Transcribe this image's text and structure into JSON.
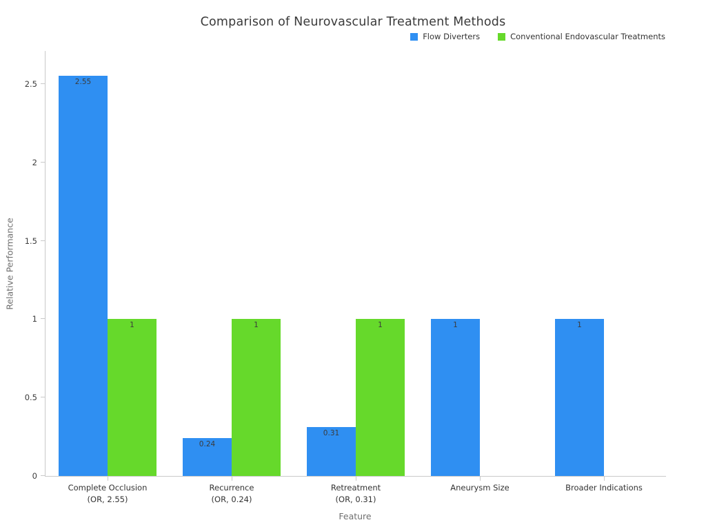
{
  "chart_data": {
    "type": "bar",
    "title": "Comparison of Neurovascular Treatment Methods",
    "xlabel": "Feature",
    "ylabel": "Relative Performance",
    "categories": [
      "Complete Occlusion\n(OR, 2.55)",
      "Recurrence\n(OR, 0.24)",
      "Retreatment\n(OR, 0.31)",
      "Aneurysm Size",
      "Broader Indications"
    ],
    "series": [
      {
        "name": "Flow Diverters",
        "color": "#2F8FF2",
        "values": [
          2.55,
          0.24,
          0.31,
          1,
          1
        ]
      },
      {
        "name": "Conventional Endovascular Treatments",
        "color": "#66D92B",
        "values": [
          1,
          1,
          1,
          null,
          null
        ]
      }
    ],
    "yticks": [
      0,
      0.5,
      1,
      1.5,
      2,
      2.5
    ],
    "ylim": [
      0,
      2.71
    ],
    "grid": false,
    "legend_position": "top-right",
    "axis_color": "#c9c9c9"
  }
}
